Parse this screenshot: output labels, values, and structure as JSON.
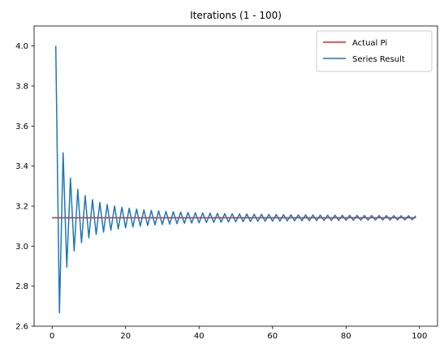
{
  "chart_data": {
    "type": "line",
    "title": "Iterations (1 - 100)",
    "xlabel": "",
    "ylabel": "",
    "xlim": [
      -4.9,
      104.9
    ],
    "ylim": [
      2.6,
      4.1
    ],
    "xticks": [
      0,
      20,
      40,
      60,
      80,
      100
    ],
    "yticks": [
      2.6,
      2.8,
      3.0,
      3.2,
      3.4,
      3.6,
      3.8,
      4.0
    ],
    "ytick_labels": [
      "2.6",
      "2.8",
      "3.0",
      "3.2",
      "3.4",
      "3.6",
      "3.8",
      "4.0"
    ],
    "grid": false,
    "legend_position": "upper right",
    "series": [
      {
        "name": "Actual Pi",
        "color": "#d62728",
        "kind": "constant",
        "value": 3.14159,
        "x": [
          0,
          99
        ]
      },
      {
        "name": "Series Result",
        "color": "#1f77b4",
        "kind": "leibniz_partial_sums",
        "x_start": 1,
        "x_end": 99
      }
    ]
  }
}
